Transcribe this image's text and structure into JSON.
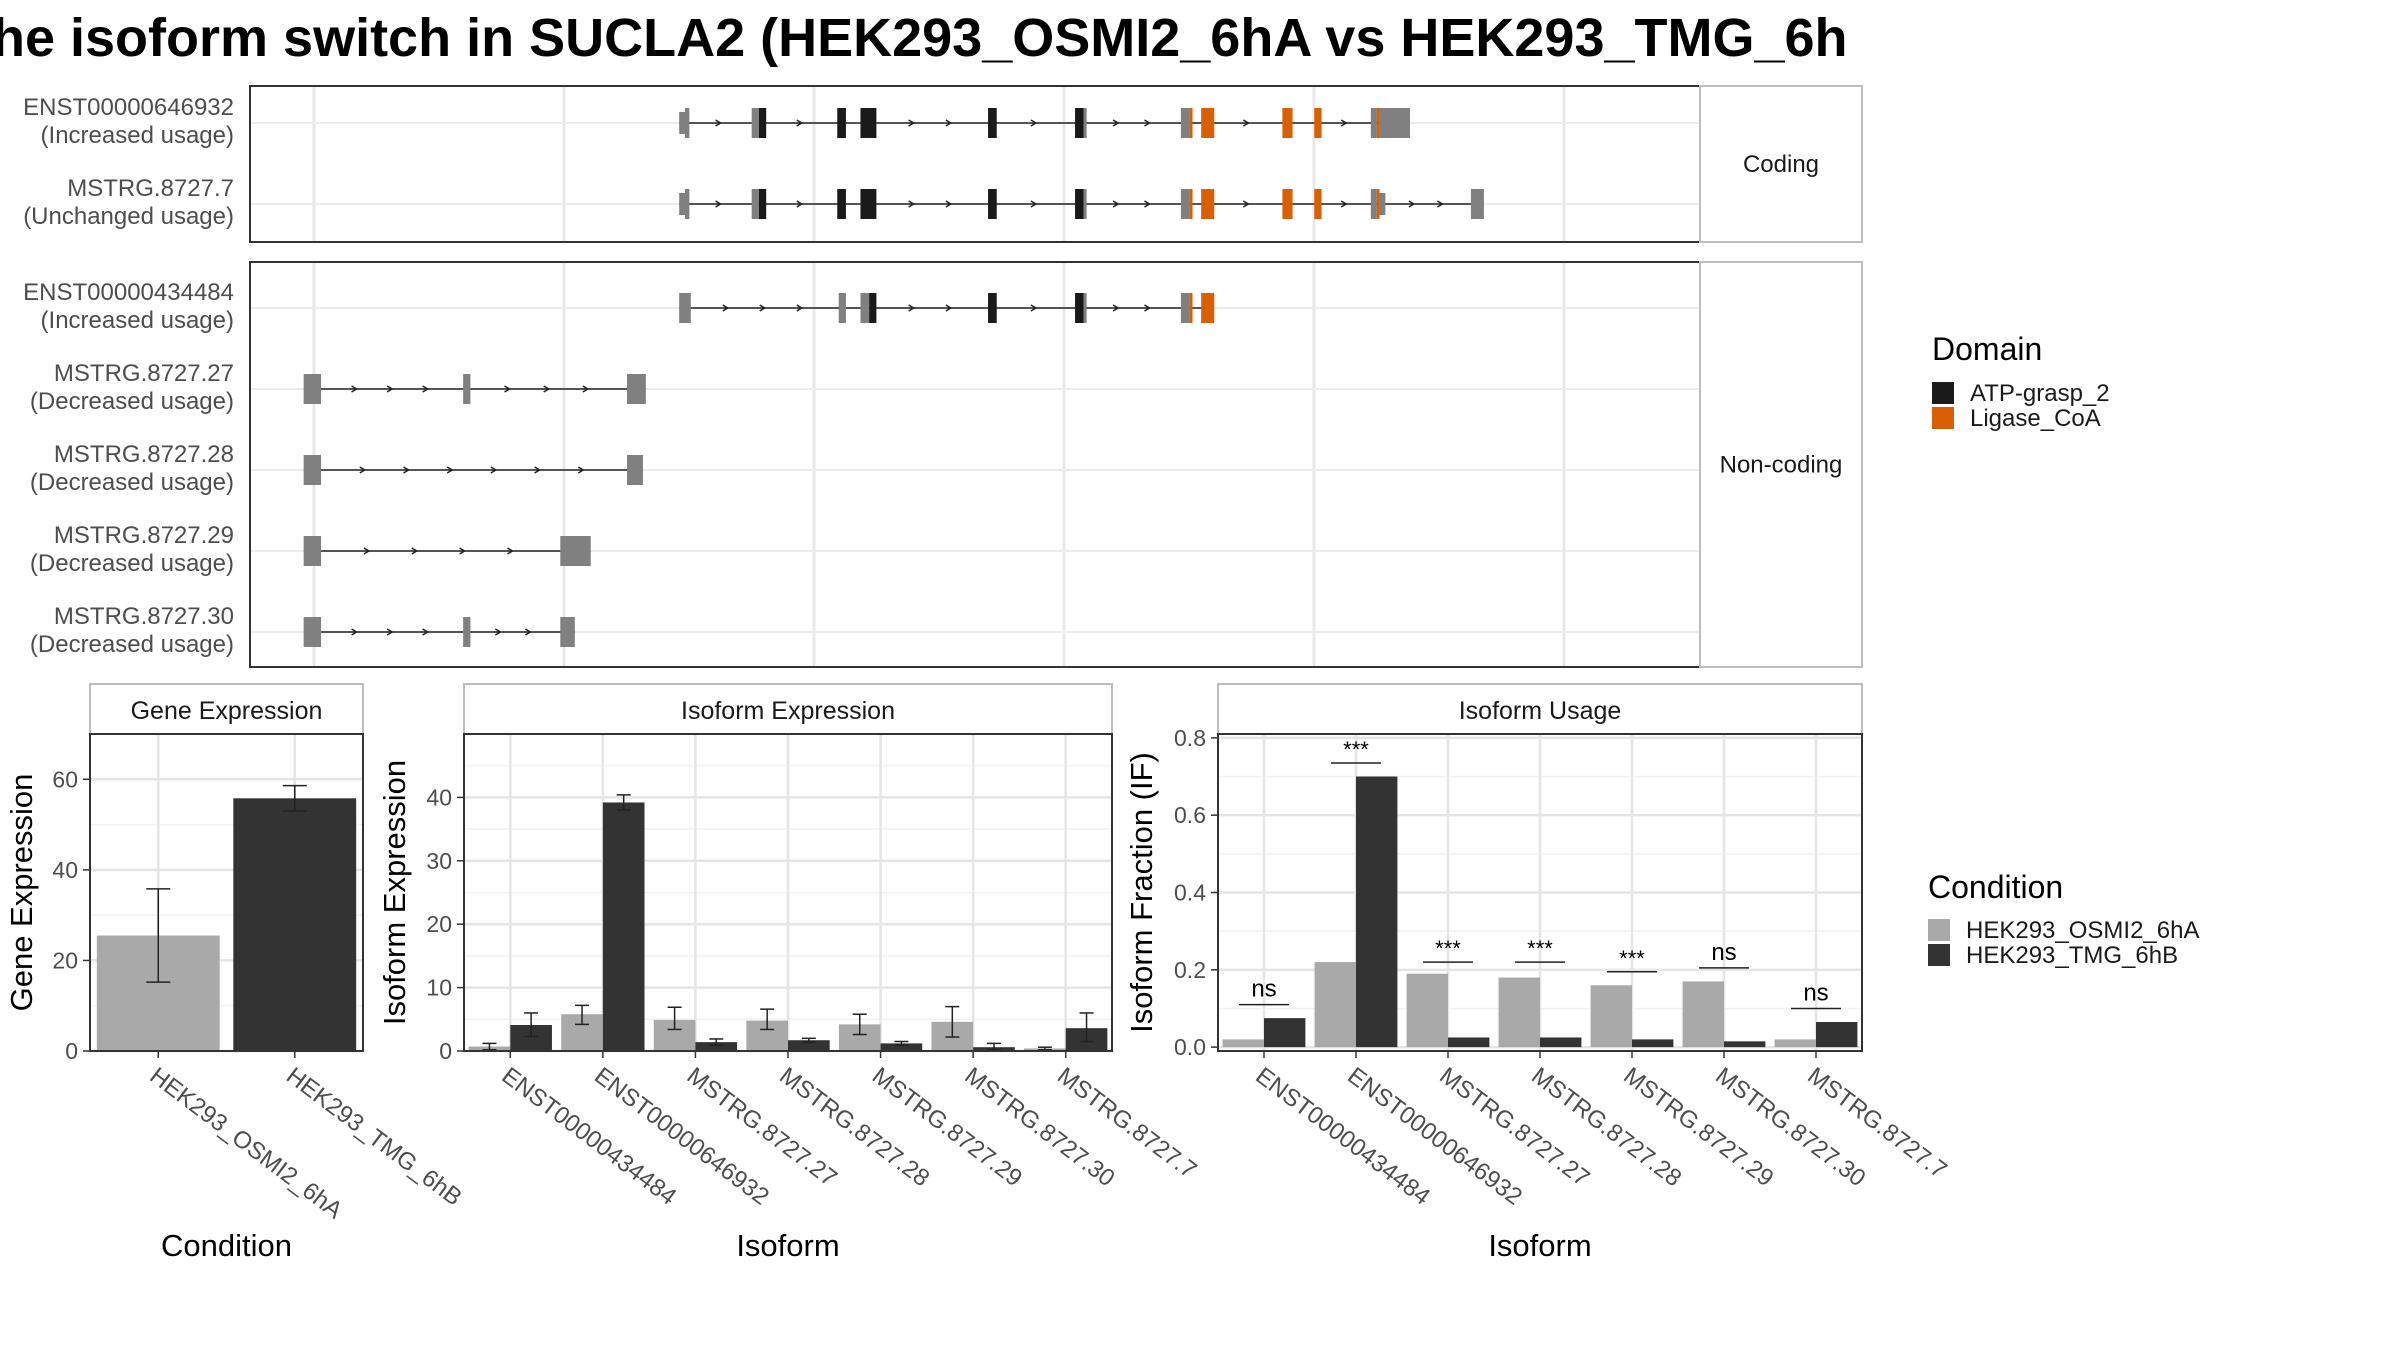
{
  "title": "he isoform switch in SUCLA2 (HEK293_OSMI2_6hA vs HEK293_TMG_6h",
  "chart_data": [
    {
      "type": "gene-structure",
      "panels": [
        {
          "facet_label": "Coding",
          "transcripts": [
            {
              "name": "ENST00000646932",
              "usage": "(Increased usage)",
              "exons": [
                {
                  "s": 0.296,
                  "e": 0.3,
                  "c": "gray",
                  "thin": true
                },
                {
                  "s": 0.3,
                  "e": 0.303,
                  "c": "gray"
                },
                {
                  "s": 0.346,
                  "e": 0.351,
                  "c": "gray"
                },
                {
                  "s": 0.351,
                  "e": 0.356,
                  "c": "black"
                },
                {
                  "s": 0.405,
                  "e": 0.411,
                  "c": "black"
                },
                {
                  "s": 0.421,
                  "e": 0.432,
                  "c": "black"
                },
                {
                  "s": 0.509,
                  "e": 0.515,
                  "c": "black"
                },
                {
                  "s": 0.569,
                  "e": 0.575,
                  "c": "black"
                },
                {
                  "s": 0.575,
                  "e": 0.577,
                  "c": "gray"
                },
                {
                  "s": 0.642,
                  "e": 0.648,
                  "c": "gray"
                },
                {
                  "s": 0.648,
                  "e": 0.65,
                  "c": "orange"
                },
                {
                  "s": 0.656,
                  "e": 0.665,
                  "c": "orange"
                },
                {
                  "s": 0.712,
                  "e": 0.719,
                  "c": "orange"
                },
                {
                  "s": 0.734,
                  "e": 0.739,
                  "c": "orange"
                },
                {
                  "s": 0.773,
                  "e": 0.777,
                  "c": "gray"
                },
                {
                  "s": 0.777,
                  "e": 0.779,
                  "c": "orange"
                },
                {
                  "s": 0.779,
                  "e": 0.8,
                  "c": "gray"
                }
              ]
            },
            {
              "name": "MSTRG.8727.7",
              "usage": "(Unchanged usage)",
              "exons": [
                {
                  "s": 0.296,
                  "e": 0.3,
                  "c": "gray",
                  "thin": true
                },
                {
                  "s": 0.3,
                  "e": 0.303,
                  "c": "gray"
                },
                {
                  "s": 0.346,
                  "e": 0.351,
                  "c": "gray"
                },
                {
                  "s": 0.351,
                  "e": 0.356,
                  "c": "black"
                },
                {
                  "s": 0.405,
                  "e": 0.411,
                  "c": "black"
                },
                {
                  "s": 0.421,
                  "e": 0.432,
                  "c": "black"
                },
                {
                  "s": 0.509,
                  "e": 0.515,
                  "c": "black"
                },
                {
                  "s": 0.569,
                  "e": 0.575,
                  "c": "black"
                },
                {
                  "s": 0.575,
                  "e": 0.577,
                  "c": "gray"
                },
                {
                  "s": 0.642,
                  "e": 0.648,
                  "c": "gray"
                },
                {
                  "s": 0.648,
                  "e": 0.65,
                  "c": "orange"
                },
                {
                  "s": 0.656,
                  "e": 0.665,
                  "c": "orange"
                },
                {
                  "s": 0.712,
                  "e": 0.719,
                  "c": "orange"
                },
                {
                  "s": 0.734,
                  "e": 0.739,
                  "c": "orange"
                },
                {
                  "s": 0.773,
                  "e": 0.777,
                  "c": "gray"
                },
                {
                  "s": 0.777,
                  "e": 0.779,
                  "c": "orange"
                },
                {
                  "s": 0.779,
                  "e": 0.783,
                  "c": "gray",
                  "thin": true
                },
                {
                  "s": 0.842,
                  "e": 0.851,
                  "c": "gray"
                }
              ]
            }
          ]
        },
        {
          "facet_label": "Non-coding",
          "transcripts": [
            {
              "name": "ENST00000434484",
              "usage": "(Increased usage)",
              "exons": [
                {
                  "s": 0.296,
                  "e": 0.304,
                  "c": "gray"
                },
                {
                  "s": 0.406,
                  "e": 0.411,
                  "c": "gray"
                },
                {
                  "s": 0.421,
                  "e": 0.427,
                  "c": "gray"
                },
                {
                  "s": 0.427,
                  "e": 0.432,
                  "c": "black"
                },
                {
                  "s": 0.509,
                  "e": 0.515,
                  "c": "black"
                },
                {
                  "s": 0.569,
                  "e": 0.575,
                  "c": "black"
                },
                {
                  "s": 0.575,
                  "e": 0.577,
                  "c": "gray"
                },
                {
                  "s": 0.642,
                  "e": 0.648,
                  "c": "gray"
                },
                {
                  "s": 0.648,
                  "e": 0.65,
                  "c": "orange"
                },
                {
                  "s": 0.656,
                  "e": 0.665,
                  "c": "orange"
                }
              ]
            },
            {
              "name": "MSTRG.8727.27",
              "usage": "(Decreased usage)",
              "exons": [
                {
                  "s": 0.037,
                  "e": 0.049,
                  "c": "gray"
                },
                {
                  "s": 0.147,
                  "e": 0.152,
                  "c": "gray"
                },
                {
                  "s": 0.26,
                  "e": 0.273,
                  "c": "gray"
                }
              ]
            },
            {
              "name": "MSTRG.8727.28",
              "usage": "(Decreased usage)",
              "exons": [
                {
                  "s": 0.037,
                  "e": 0.049,
                  "c": "gray"
                },
                {
                  "s": 0.26,
                  "e": 0.271,
                  "c": "gray"
                }
              ]
            },
            {
              "name": "MSTRG.8727.29",
              "usage": "(Decreased usage)",
              "exons": [
                {
                  "s": 0.037,
                  "e": 0.049,
                  "c": "gray"
                },
                {
                  "s": 0.214,
                  "e": 0.235,
                  "c": "gray"
                }
              ]
            },
            {
              "name": "MSTRG.8727.30",
              "usage": "(Decreased usage)",
              "exons": [
                {
                  "s": 0.037,
                  "e": 0.049,
                  "c": "gray"
                },
                {
                  "s": 0.147,
                  "e": 0.152,
                  "c": "gray"
                },
                {
                  "s": 0.214,
                  "e": 0.224,
                  "c": "gray"
                }
              ]
            }
          ]
        }
      ],
      "legend": {
        "title": "Domain",
        "items": [
          {
            "name": "ATP-grasp_2",
            "color": "#1a1a1a"
          },
          {
            "name": "Ligase_CoA",
            "color": "#d95f02"
          }
        ]
      },
      "colors": {
        "gray": "#808080",
        "black": "#1a1a1a",
        "orange": "#d95f02"
      }
    },
    {
      "type": "bar",
      "strip": "Gene Expression",
      "xlabel": "Condition",
      "ylabel": "Gene Expression",
      "ylim": [
        0,
        70
      ],
      "yticks": [
        0,
        20,
        40,
        60
      ],
      "categories": [
        "HEK293_OSMI2_6hA",
        "HEK293_TMG_6hB"
      ],
      "values": [
        25.5,
        55.8
      ],
      "errors": [
        [
          15.2,
          35.8
        ],
        [
          53.0,
          58.6
        ]
      ],
      "colors": [
        "#a9a9a9",
        "#333333"
      ]
    },
    {
      "type": "bar",
      "strip": "Isoform Expression",
      "xlabel": "Isoform",
      "ylabel": "Isoform Expression",
      "ylim": [
        0,
        50
      ],
      "yticks": [
        0,
        10,
        20,
        30,
        40
      ],
      "categories": [
        "ENST00000434484",
        "ENST00000646932",
        "MSTRG.8727.27",
        "MSTRG.8727.28",
        "MSTRG.8727.29",
        "MSTRG.8727.30",
        "MSTRG.8727.7"
      ],
      "series": [
        {
          "name": "HEK293_OSMI2_6hA",
          "values": [
            0.7,
            5.8,
            4.9,
            4.8,
            4.2,
            4.6,
            0.4
          ],
          "errors": [
            [
              0.2,
              1.2
            ],
            [
              4.2,
              7.2
            ],
            [
              3.4,
              6.9
            ],
            [
              3.4,
              6.6
            ],
            [
              2.6,
              5.8
            ],
            [
              2.2,
              7.0
            ],
            [
              0.2,
              0.6
            ]
          ]
        },
        {
          "name": "HEK293_TMG_6hB",
          "values": [
            4.1,
            39.2,
            1.4,
            1.7,
            1.2,
            0.6,
            3.6
          ],
          "errors": [
            [
              2.3,
              6.0
            ],
            [
              38.0,
              40.4
            ],
            [
              0.9,
              1.9
            ],
            [
              1.4,
              2.0
            ],
            [
              0.9,
              1.5
            ],
            [
              0.2,
              1.2
            ],
            [
              1.5,
              6.0
            ]
          ]
        }
      ],
      "colors": [
        "#a9a9a9",
        "#333333"
      ]
    },
    {
      "type": "bar",
      "strip": "Isoform Usage",
      "xlabel": "Isoform",
      "ylabel": "Isoform Fraction (IF)",
      "ylim": [
        -0.01,
        0.81
      ],
      "yticks": [
        0.0,
        0.2,
        0.4,
        0.6,
        0.8
      ],
      "yticklabels": [
        "0.0",
        "0.2",
        "0.4",
        "0.6",
        "0.8"
      ],
      "categories": [
        "ENST00000434484",
        "ENST00000646932",
        "MSTRG.8727.27",
        "MSTRG.8727.28",
        "MSTRG.8727.29",
        "MSTRG.8727.30",
        "MSTRG.8727.7"
      ],
      "series": [
        {
          "name": "HEK293_OSMI2_6hA",
          "values": [
            0.02,
            0.22,
            0.19,
            0.18,
            0.16,
            0.17,
            0.02
          ]
        },
        {
          "name": "HEK293_TMG_6hB",
          "values": [
            0.075,
            0.7,
            0.025,
            0.025,
            0.02,
            0.015,
            0.065
          ]
        }
      ],
      "significance": [
        {
          "label": "ns",
          "y": 0.11
        },
        {
          "label": "***",
          "y": 0.735
        },
        {
          "label": "***",
          "y": 0.22
        },
        {
          "label": "***",
          "y": 0.22
        },
        {
          "label": "***",
          "y": 0.195
        },
        {
          "label": "ns",
          "y": 0.205
        },
        {
          "label": "ns",
          "y": 0.1
        }
      ],
      "colors": [
        "#a9a9a9",
        "#333333"
      ]
    }
  ],
  "condition_legend": {
    "title": "Condition",
    "items": [
      {
        "name": "HEK293_OSMI2_6hA",
        "color": "#a9a9a9"
      },
      {
        "name": "HEK293_TMG_6hB",
        "color": "#333333"
      }
    ]
  }
}
